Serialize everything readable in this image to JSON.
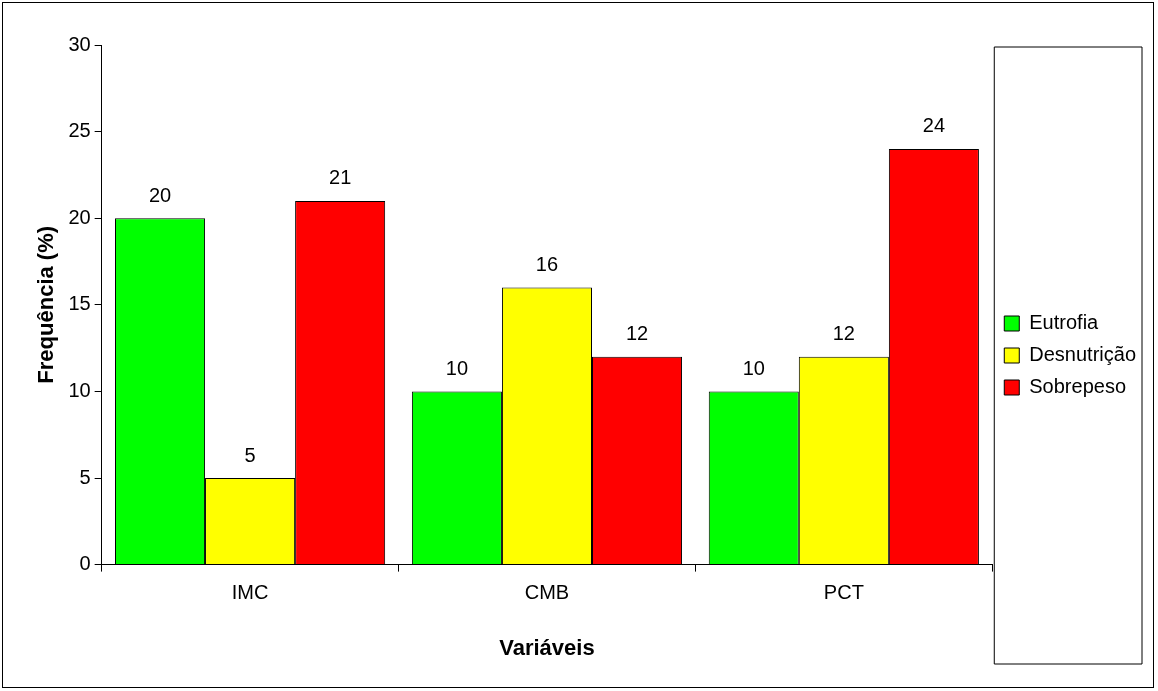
{
  "chart_data": {
    "type": "bar",
    "xlabel": "Variáveis",
    "ylabel": "Frequência (%)",
    "categories": [
      "IMC",
      "CMB",
      "PCT"
    ],
    "series": [
      {
        "name": "Eutrofia",
        "color": "#00ff00",
        "values": [
          20,
          10,
          10
        ]
      },
      {
        "name": "Desnutrição",
        "color": "#ffff00",
        "values": [
          5,
          16,
          12
        ]
      },
      {
        "name": "Sobrepeso",
        "color": "#ff0000",
        "values": [
          21,
          12,
          24
        ]
      }
    ],
    "ylim": [
      0,
      30
    ],
    "yticks": [
      0,
      5,
      10,
      15,
      20,
      25,
      30
    ],
    "grid": false,
    "legend": "right",
    "data_labels": true
  }
}
